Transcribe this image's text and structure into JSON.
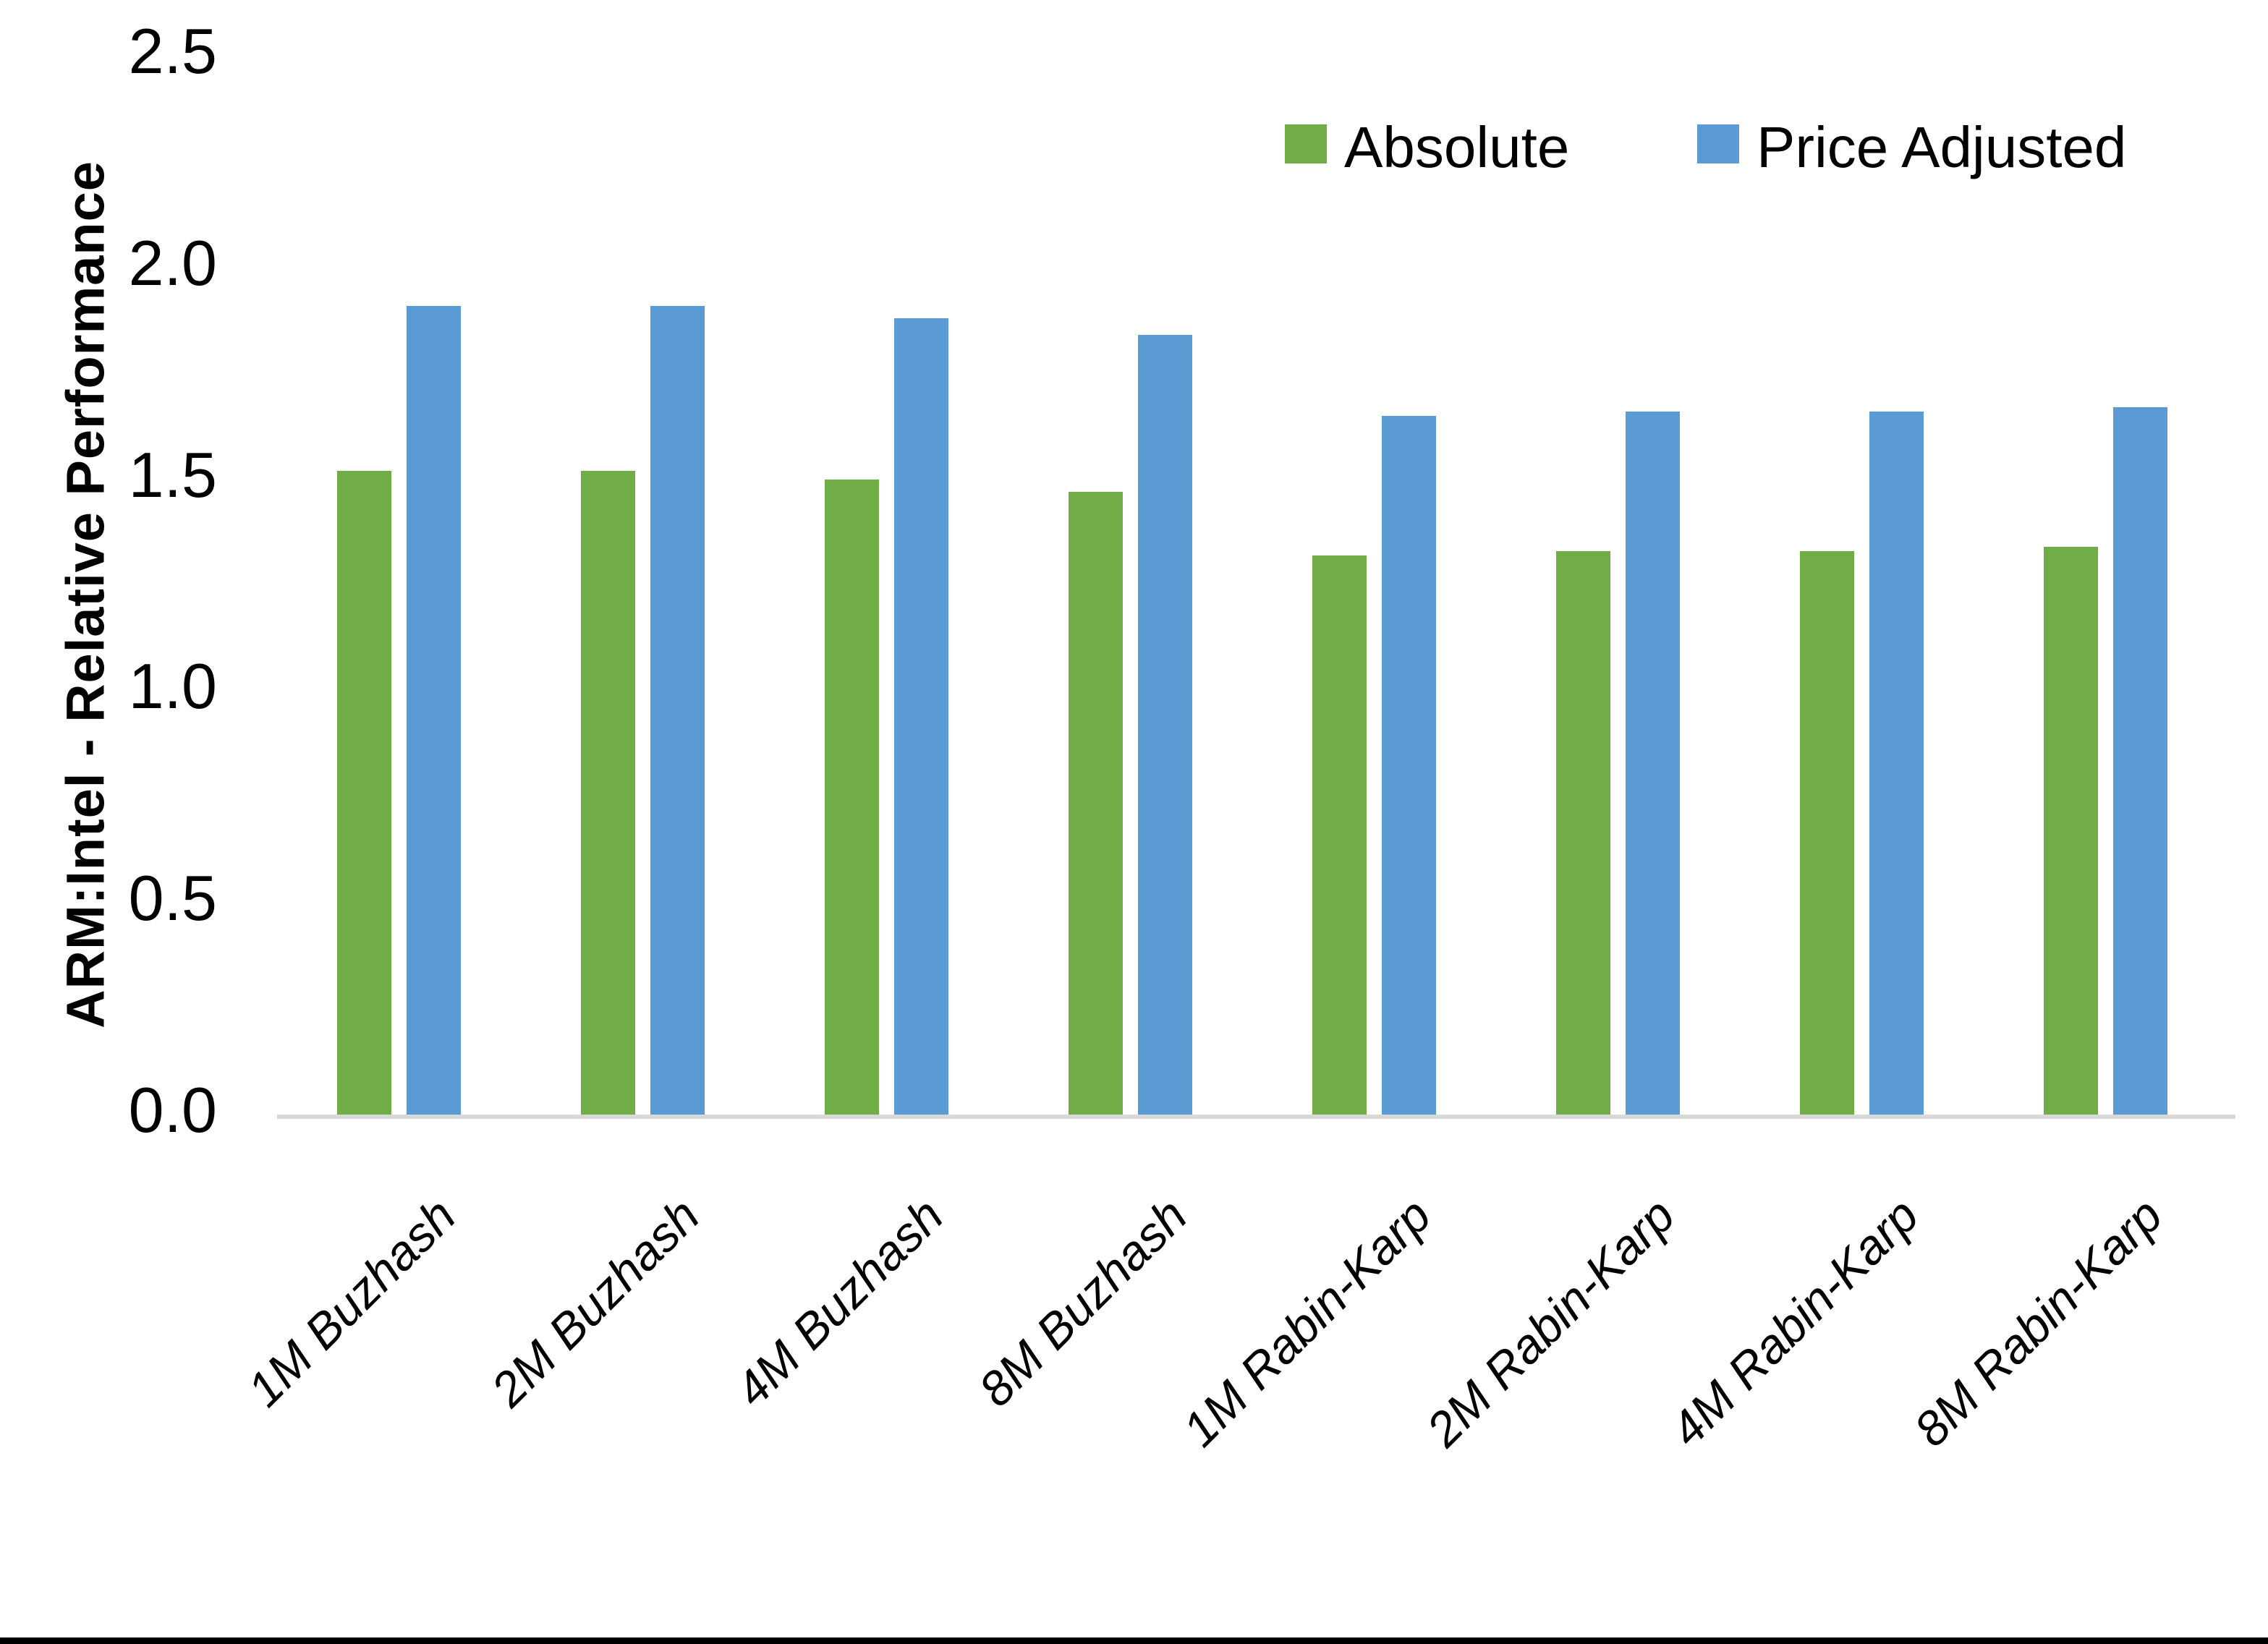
{
  "chart_data": {
    "type": "bar",
    "title": "",
    "ylabel": "ARM:Intel - Relative Performance",
    "xlabel": "",
    "categories": [
      "1M Buzhash",
      "2M Buzhash",
      "4M Buzhash",
      "8M Buzhash",
      "1M Rabin-Karp",
      "2M Rabin-Karp",
      "4M Rabin-Karp",
      "8M Rabin-Karp"
    ],
    "series": [
      {
        "name": "Absolute",
        "color": "#70AD47",
        "values": [
          1.52,
          1.52,
          1.5,
          1.47,
          1.32,
          1.33,
          1.33,
          1.34
        ]
      },
      {
        "name": "Price Adjusted",
        "color": "#5B9BD5",
        "values": [
          1.91,
          1.91,
          1.88,
          1.84,
          1.65,
          1.66,
          1.66,
          1.67
        ]
      }
    ],
    "ylim": [
      0,
      2.5
    ],
    "yticks": [
      "0.0",
      "0.5",
      "1.0",
      "1.5",
      "2.0",
      "2.5"
    ],
    "grid": false,
    "legend_position": "top-right",
    "axis_line_color": "#D9D9D9"
  }
}
